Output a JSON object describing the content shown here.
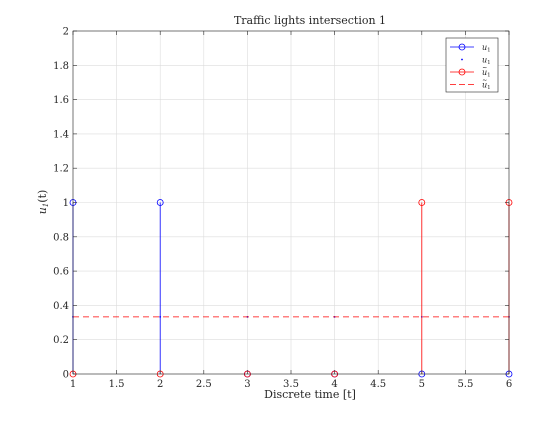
{
  "chart_data": {
    "type": "stem",
    "title": "Traffic lights intersection 1",
    "xlabel": "Discrete time [t]",
    "ylabel_base": "u",
    "ylabel_sub": "1",
    "ylabel_suffix": "(t)",
    "xlim": [
      1,
      6
    ],
    "ylim": [
      0,
      2
    ],
    "x_ticks": [
      "1",
      "1.5",
      "2",
      "2.5",
      "3",
      "3.5",
      "4",
      "4.5",
      "5",
      "5.5",
      "6"
    ],
    "x_tick_values": [
      1,
      1.5,
      2,
      2.5,
      3,
      3.5,
      4,
      4.5,
      5,
      5.5,
      6
    ],
    "y_ticks": [
      "0",
      "0.2",
      "0.4",
      "0.6",
      "0.8",
      "1",
      "1.2",
      "1.4",
      "1.6",
      "1.8",
      "2"
    ],
    "y_tick_values": [
      0,
      0.2,
      0.4,
      0.6,
      0.8,
      1,
      1.2,
      1.4,
      1.6,
      1.8,
      2
    ],
    "grid": true,
    "legend_position": "top-right",
    "series": [
      {
        "name": "u",
        "name_sub": "1",
        "name_accent": "",
        "style": "stem",
        "color": "#0000ff",
        "x": [
          1,
          2,
          3,
          4,
          5,
          6
        ],
        "y": [
          1,
          1,
          0,
          0,
          0,
          0
        ]
      },
      {
        "name": "u",
        "name_sub": "1",
        "name_accent": "",
        "style": "mean-dots",
        "color": "#0000ff",
        "x": [
          1,
          2,
          3,
          4,
          5,
          6
        ],
        "y": [
          0.333,
          0.333,
          0.333,
          0.333,
          0.333,
          0.333
        ]
      },
      {
        "name": "u",
        "name_sub": "1",
        "name_accent": "~",
        "style": "stem",
        "color": "#ff0000",
        "x": [
          1,
          2,
          3,
          4,
          5,
          6
        ],
        "y": [
          0,
          0,
          0,
          0,
          1,
          1
        ]
      },
      {
        "name": "u",
        "name_sub": "1",
        "name_accent": "~",
        "style": "dashed-line",
        "color": "#ff0000",
        "x": [
          1,
          6
        ],
        "y": [
          0.333,
          0.333
        ]
      }
    ]
  }
}
